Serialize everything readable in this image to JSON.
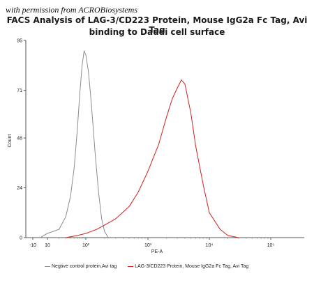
{
  "watermark": "with permission from ACROBiosystems",
  "chart_data": {
    "type": "area",
    "title_line1": "FACS Analysis of LAG-3/CD223 Protein, Mouse IgG2a Fc Tag, Avi Tag",
    "title_line2": "binding to Daudi cell surface",
    "xlabel": "PE-A",
    "ylabel": "Count",
    "xscale": "biexponential",
    "ylim": [
      0,
      95
    ],
    "y_ticks": [
      0,
      24,
      48,
      71,
      95
    ],
    "x_ticks": [
      "-10",
      "10",
      "10²",
      "10³",
      "10⁴",
      "10⁵"
    ],
    "grid": false,
    "legend_position": "bottom",
    "series": [
      {
        "name": "Negtive control protein,Avi tag",
        "color": "#8c8c8c",
        "x": [
          1,
          5,
          10,
          20,
          30,
          40,
          50,
          60,
          70,
          80,
          90,
          100,
          110,
          120,
          130,
          140,
          160,
          180,
          200,
          230
        ],
        "y": [
          0,
          1,
          2,
          4,
          10,
          20,
          34,
          52,
          70,
          83,
          90,
          88,
          80,
          68,
          55,
          42,
          22,
          9,
          3,
          0
        ]
      },
      {
        "name": "LAG-3/CD223 Protein, Mouse IgG2a Fc Tag, Avi Tag",
        "color": "#d02020",
        "x": [
          30,
          60,
          100,
          150,
          200,
          300,
          500,
          700,
          1000,
          1500,
          2000,
          2500,
          3000,
          3500,
          4000,
          5000,
          6000,
          8000,
          10000,
          15000,
          20000,
          30000
        ],
        "y": [
          0,
          1,
          2,
          4,
          6,
          9,
          15,
          22,
          32,
          45,
          58,
          67,
          72,
          76,
          74,
          60,
          44,
          25,
          12,
          4,
          1,
          0
        ]
      }
    ]
  }
}
